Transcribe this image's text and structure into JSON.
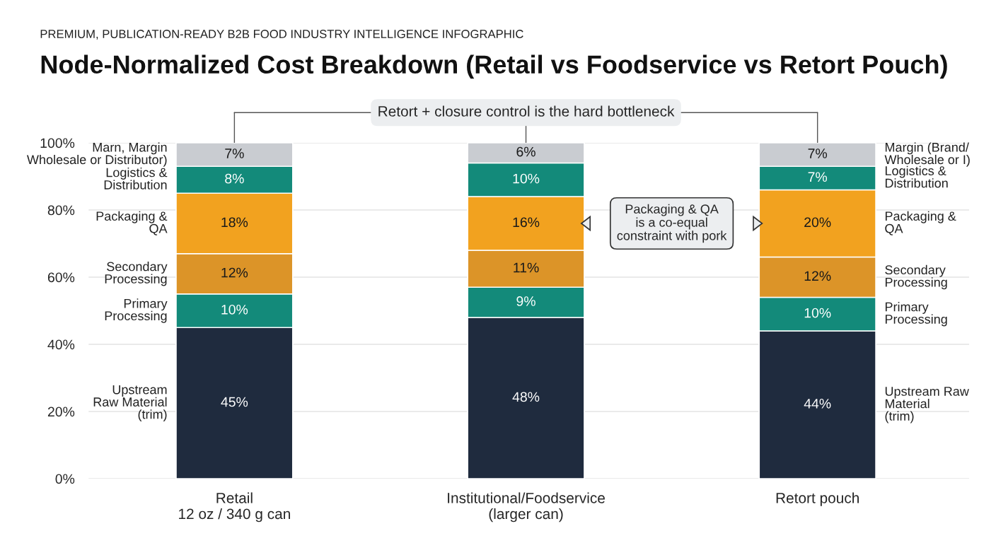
{
  "chart_data": {
    "type": "bar",
    "stacked": true,
    "subtitle": "PREMIUM, PUBLICATION-READY B2B FOOD INDUSTRY INTELLIGENCE INFOGRAPHIC",
    "title": "Node-Normalized Cost Breakdown (Retail vs Foodservice vs Retort Pouch)",
    "categories": [
      "Retail\n12 oz / 340 g can",
      "Institutional/Foodservice\n(larger can)",
      "Retort pouch"
    ],
    "ylim": [
      0,
      100
    ],
    "yticks": [
      {
        "value": 0,
        "label": "0%"
      },
      {
        "value": 20,
        "label": "20%"
      },
      {
        "value": 40,
        "label": "40%"
      },
      {
        "value": 60,
        "label": "60%"
      },
      {
        "value": 80,
        "label": "80%"
      },
      {
        "value": 100,
        "label": "100%"
      }
    ],
    "grid": "y",
    "series": [
      {
        "color": "#1f2b3e",
        "values": [
          45,
          48,
          44
        ],
        "value_labels": [
          "45%",
          "48%",
          "44%"
        ]
      },
      {
        "color": "#138a7a",
        "values": [
          10,
          9,
          10
        ],
        "value_labels": [
          "10%",
          "9%",
          "10%"
        ]
      },
      {
        "color": "#dc9428",
        "values": [
          12,
          11,
          12
        ],
        "value_labels": [
          "12%",
          "11%",
          "12%"
        ]
      },
      {
        "color": "#f2a21f",
        "values": [
          18,
          16,
          20
        ],
        "value_labels": [
          "18%",
          "16%",
          "20%"
        ]
      },
      {
        "color": "#138a7a",
        "values": [
          8,
          10,
          7
        ],
        "value_labels": [
          "8%",
          "10%",
          "7%"
        ]
      },
      {
        "color": "#c9ccd1",
        "values": [
          7,
          6,
          7
        ],
        "value_labels": [
          "7%",
          "6%",
          "7%"
        ]
      }
    ],
    "annotations": [
      "Marn, Margin\nWholesale or Distributor)",
      "Logistics &\nDistribution",
      "Packaging &\nQA",
      "Secondary\nProcessing",
      "Primary\nProcessing",
      "Upstream\nRaw Material\n(trim)",
      "Margin (Brand/\nWholesale or I)",
      "Logistics &\nDistribution",
      "Packaging &\nQA",
      "Secondary\nProcessing",
      "Primary\nProcessing",
      "Upstream Raw\nMaterial\n(trim)",
      "Retort + closure control is the hard bottleneck",
      "Packaging & QA\nis a co-equal\nconstraint with pork"
    ]
  }
}
